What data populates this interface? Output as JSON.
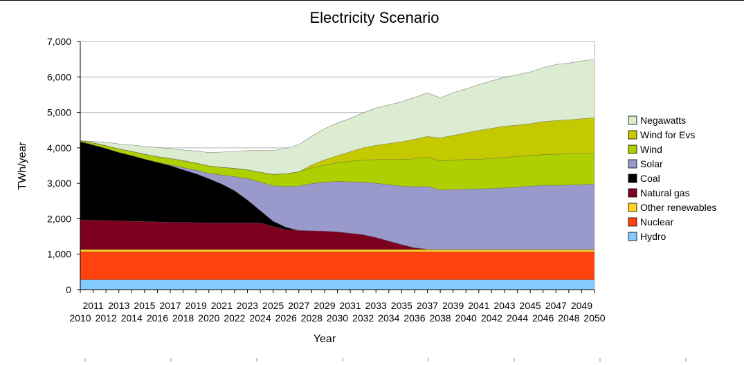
{
  "chart_data": {
    "type": "area",
    "stacked": true,
    "title": "Electricity Scenario",
    "xlabel": "Year",
    "ylabel": "TWh/year",
    "ylim": [
      0,
      7000
    ],
    "yticks": [
      0,
      1000,
      2000,
      3000,
      4000,
      5000,
      6000,
      7000
    ],
    "ytick_labels": [
      "0",
      "1,000",
      "2,000",
      "3,000",
      "4,000",
      "5,000",
      "6,000",
      "7,000"
    ],
    "grid": true,
    "legend_position": "right",
    "x": [
      2010,
      2011,
      2012,
      2013,
      2014,
      2015,
      2016,
      2017,
      2018,
      2019,
      2020,
      2021,
      2022,
      2023,
      2024,
      2025,
      2026,
      2027,
      2028,
      2029,
      2030,
      2031,
      2032,
      2033,
      2034,
      2035,
      2036,
      2037,
      2038,
      2039,
      2040,
      2041,
      2042,
      2043,
      2044,
      2045,
      2046,
      2047,
      2048,
      2049,
      2050
    ],
    "xtick_labels": [
      "2010",
      "2011",
      "2012",
      "2013",
      "2014",
      "2015",
      "2016",
      "2017",
      "2018",
      "2019",
      "2020",
      "2021",
      "2022",
      "2023",
      "2024",
      "2025",
      "2026",
      "2027",
      "2028",
      "2029",
      "2030",
      "2031",
      "2032",
      "2033",
      "2034",
      "2035",
      "2036",
      "2037",
      "2038",
      "2039",
      "2040",
      "2041",
      "2042",
      "2043",
      "2044",
      "2045",
      "2046",
      "2047",
      "2048",
      "2049",
      "2050"
    ],
    "series": [
      {
        "name": "Hydro",
        "color": "#83caff",
        "values": [
          280,
          280,
          280,
          280,
          280,
          280,
          280,
          280,
          280,
          280,
          280,
          280,
          280,
          280,
          280,
          280,
          280,
          280,
          280,
          280,
          280,
          280,
          280,
          280,
          280,
          280,
          280,
          280,
          280,
          280,
          280,
          280,
          280,
          280,
          280,
          280,
          280,
          280,
          280,
          280,
          280
        ]
      },
      {
        "name": "Nuclear",
        "color": "#ff420e",
        "values": [
          790,
          790,
          790,
          790,
          790,
          790,
          790,
          790,
          790,
          790,
          790,
          790,
          790,
          790,
          790,
          790,
          790,
          790,
          790,
          790,
          790,
          790,
          790,
          790,
          790,
          790,
          790,
          790,
          790,
          790,
          790,
          790,
          790,
          790,
          790,
          790,
          790,
          790,
          790,
          790,
          790
        ]
      },
      {
        "name": "Other renewables",
        "color": "#ffd320",
        "values": [
          60,
          60,
          60,
          60,
          60,
          60,
          60,
          60,
          60,
          60,
          60,
          60,
          60,
          60,
          60,
          60,
          60,
          60,
          60,
          60,
          60,
          60,
          60,
          60,
          60,
          60,
          60,
          60,
          60,
          60,
          60,
          60,
          60,
          60,
          60,
          60,
          60,
          60,
          60,
          60,
          60
        ]
      },
      {
        "name": "Natural gas",
        "color": "#7e0021",
        "values": [
          840,
          830,
          820,
          810,
          800,
          790,
          780,
          770,
          770,
          760,
          750,
          750,
          750,
          750,
          750,
          650,
          560,
          540,
          530,
          520,
          500,
          460,
          420,
          340,
          240,
          140,
          50,
          10,
          0,
          0,
          0,
          0,
          0,
          0,
          0,
          0,
          0,
          0,
          0,
          0,
          0
        ]
      },
      {
        "name": "Coal",
        "color": "#000000",
        "values": [
          2200,
          2120,
          2030,
          1930,
          1850,
          1760,
          1680,
          1600,
          1480,
          1380,
          1250,
          1100,
          910,
          650,
          350,
          150,
          70,
          0,
          0,
          0,
          0,
          0,
          0,
          0,
          0,
          0,
          0,
          0,
          0,
          0,
          0,
          0,
          0,
          0,
          0,
          0,
          0,
          0,
          0,
          0,
          0
        ]
      },
      {
        "name": "Solar",
        "color": "#9999cc",
        "values": [
          0,
          0,
          0,
          0,
          0,
          0,
          0,
          20,
          60,
          100,
          150,
          250,
          400,
          600,
          800,
          1000,
          1150,
          1250,
          1330,
          1380,
          1420,
          1450,
          1480,
          1530,
          1590,
          1650,
          1720,
          1770,
          1680,
          1690,
          1700,
          1710,
          1720,
          1740,
          1760,
          1790,
          1810,
          1810,
          1820,
          1830,
          1850
        ]
      },
      {
        "name": "Wind",
        "color": "#aecf00",
        "values": [
          30,
          60,
          80,
          100,
          120,
          140,
          160,
          180,
          200,
          200,
          210,
          220,
          230,
          250,
          280,
          320,
          360,
          400,
          450,
          480,
          530,
          580,
          620,
          670,
          710,
          750,
          790,
          830,
          820,
          830,
          840,
          840,
          850,
          860,
          870,
          860,
          870,
          880,
          880,
          880,
          870
        ]
      },
      {
        "name": "Wind for Evs",
        "color": "#c5c900",
        "values": [
          0,
          0,
          0,
          0,
          0,
          0,
          0,
          0,
          0,
          0,
          0,
          0,
          0,
          0,
          0,
          0,
          0,
          0,
          80,
          150,
          200,
          270,
          350,
          400,
          450,
          500,
          550,
          580,
          650,
          700,
          750,
          810,
          850,
          880,
          880,
          900,
          930,
          950,
          960,
          980,
          1000
        ]
      },
      {
        "name": "Negawatts",
        "color": "#dcecd0",
        "values": [
          0,
          40,
          100,
          140,
          180,
          220,
          260,
          280,
          300,
          340,
          380,
          430,
          480,
          540,
          620,
          670,
          720,
          770,
          810,
          880,
          920,
          940,
          990,
          1050,
          1090,
          1130,
          1180,
          1230,
          1130,
          1210,
          1240,
          1290,
          1340,
          1380,
          1420,
          1460,
          1520,
          1580,
          1600,
          1630,
          1650
        ]
      }
    ],
    "legend_order": [
      "Negawatts",
      "Wind for Evs",
      "Wind",
      "Solar",
      "Coal",
      "Natural gas",
      "Other renewables",
      "Nuclear",
      "Hydro"
    ]
  }
}
